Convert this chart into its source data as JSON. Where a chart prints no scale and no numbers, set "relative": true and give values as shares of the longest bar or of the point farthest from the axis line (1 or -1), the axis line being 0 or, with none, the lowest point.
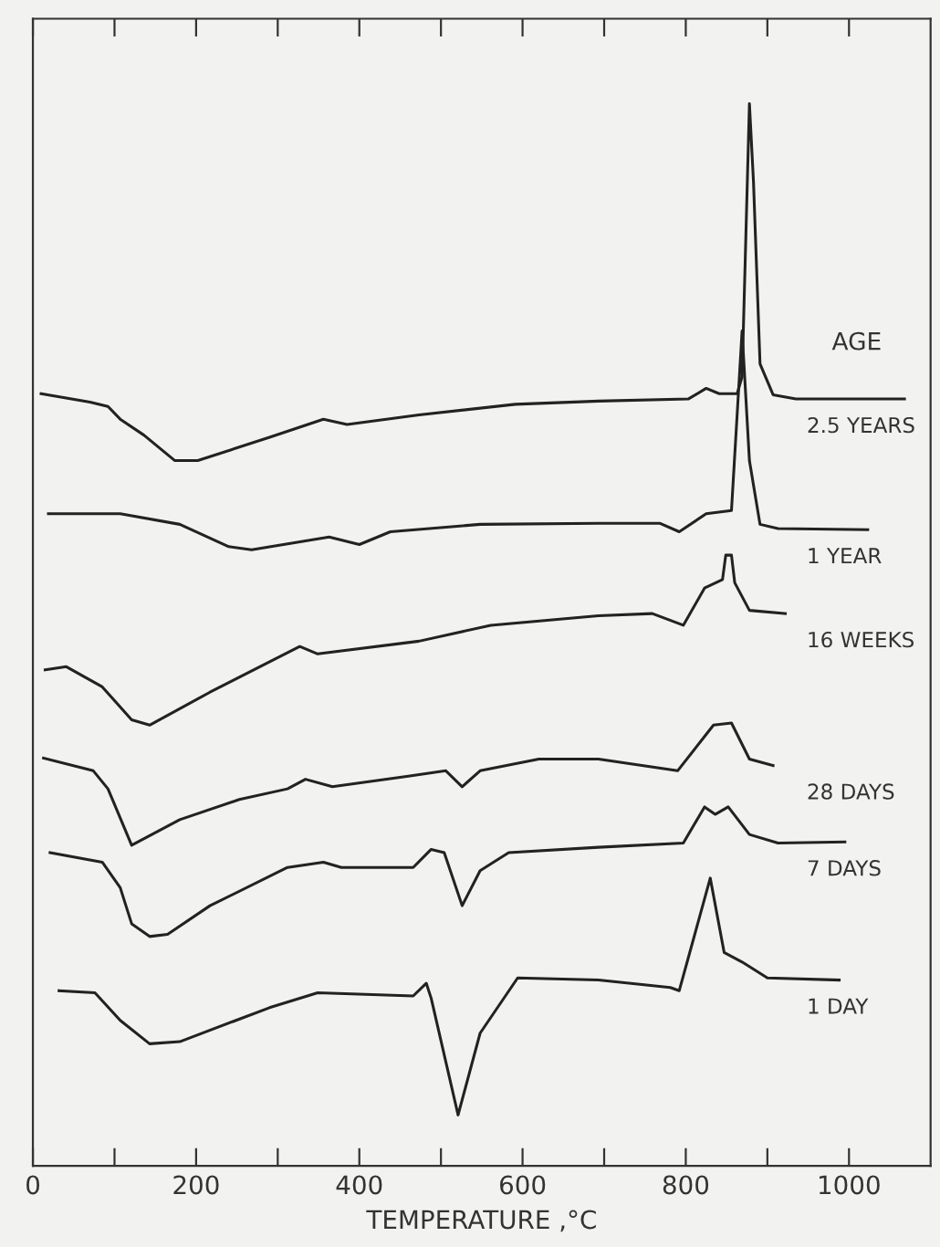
{
  "chart_data": {
    "type": "line",
    "relative": true,
    "xlabel": "TEMPERATURE ,°C",
    "legend_title": "AGE",
    "xlim": [
      0,
      1100
    ],
    "xticks": [
      0,
      {
        "value": 100,
        "label": null
      },
      200,
      {
        "value": 300,
        "label": null
      },
      400,
      {
        "value": 500,
        "label": null
      },
      600,
      {
        "value": 700,
        "label": null
      },
      800,
      {
        "value": 900,
        "label": null
      },
      1000
    ],
    "tick_labels": "x",
    "grid": false,
    "legend": false,
    "marker": "none",
    "line_style": "solid",
    "series": [
      {
        "name": "2.5 YEARS",
        "color": "#222222",
        "x": [
          10,
          70,
          92,
          107,
          136,
          174,
          202,
          290,
          356,
          385,
          473,
          591,
          693,
          803,
          825,
          841,
          863,
          869,
          878,
          883,
          891,
          907,
          935,
          1068
        ],
        "values": [
          0.727,
          0.719,
          0.715,
          0.703,
          0.688,
          0.664,
          0.664,
          0.686,
          0.703,
          0.698,
          0.707,
          0.717,
          0.72,
          0.722,
          0.732,
          0.727,
          0.727,
          0.743,
          1.0,
          0.926,
          0.755,
          0.726,
          0.722,
          0.722
        ]
      },
      {
        "name": "1 YEAR",
        "color": "#222222",
        "x": [
          19,
          107,
          180,
          240,
          268,
          363,
          400,
          438,
          548,
          693,
          768,
          792,
          825,
          856,
          869,
          878,
          891,
          913,
          1023
        ],
        "values": [
          0.614,
          0.614,
          0.604,
          0.583,
          0.58,
          0.592,
          0.585,
          0.597,
          0.604,
          0.605,
          0.605,
          0.597,
          0.614,
          0.617,
          0.786,
          0.664,
          0.604,
          0.6,
          0.599
        ]
      },
      {
        "name": "16 WEEKS",
        "color": "#222222",
        "x": [
          15,
          41,
          85,
          121,
          143,
          217,
          327,
          349,
          473,
          561,
          693,
          759,
          797,
          823,
          845,
          849,
          856,
          860,
          878,
          922
        ],
        "values": [
          0.467,
          0.47,
          0.451,
          0.42,
          0.415,
          0.446,
          0.489,
          0.482,
          0.494,
          0.509,
          0.518,
          0.52,
          0.509,
          0.544,
          0.552,
          0.575,
          0.575,
          0.549,
          0.523,
          0.52
        ]
      },
      {
        "name": "28 DAYS",
        "color": "#222222",
        "x": [
          13,
          74,
          92,
          121,
          180,
          253,
          312,
          334,
          367,
          460,
          506,
          526,
          548,
          620,
          693,
          790,
          834,
          856,
          878,
          907
        ],
        "values": [
          0.384,
          0.372,
          0.355,
          0.302,
          0.326,
          0.345,
          0.355,
          0.364,
          0.357,
          0.367,
          0.372,
          0.357,
          0.372,
          0.383,
          0.383,
          0.372,
          0.415,
          0.417,
          0.383,
          0.377
        ]
      },
      {
        "name": "7 DAYS",
        "color": "#222222",
        "x": [
          21,
          85,
          107,
          121,
          143,
          165,
          217,
          312,
          356,
          378,
          466,
          488,
          504,
          526,
          548,
          583,
          693,
          797,
          823,
          836,
          852,
          878,
          913,
          995
        ],
        "values": [
          0.295,
          0.286,
          0.262,
          0.228,
          0.216,
          0.218,
          0.245,
          0.281,
          0.286,
          0.281,
          0.281,
          0.298,
          0.295,
          0.245,
          0.278,
          0.295,
          0.3,
          0.304,
          0.338,
          0.331,
          0.338,
          0.312,
          0.304,
          0.305
        ]
      },
      {
        "name": "1 DAY",
        "color": "#222222",
        "x": [
          32,
          76,
          107,
          143,
          180,
          290,
          349,
          466,
          482,
          488,
          521,
          548,
          594,
          693,
          781,
          792,
          830,
          847,
          869,
          900,
          988
        ],
        "values": [
          0.165,
          0.163,
          0.137,
          0.115,
          0.117,
          0.149,
          0.163,
          0.16,
          0.172,
          0.158,
          0.048,
          0.125,
          0.177,
          0.175,
          0.168,
          0.165,
          0.271,
          0.201,
          0.192,
          0.177,
          0.175
        ]
      }
    ]
  }
}
